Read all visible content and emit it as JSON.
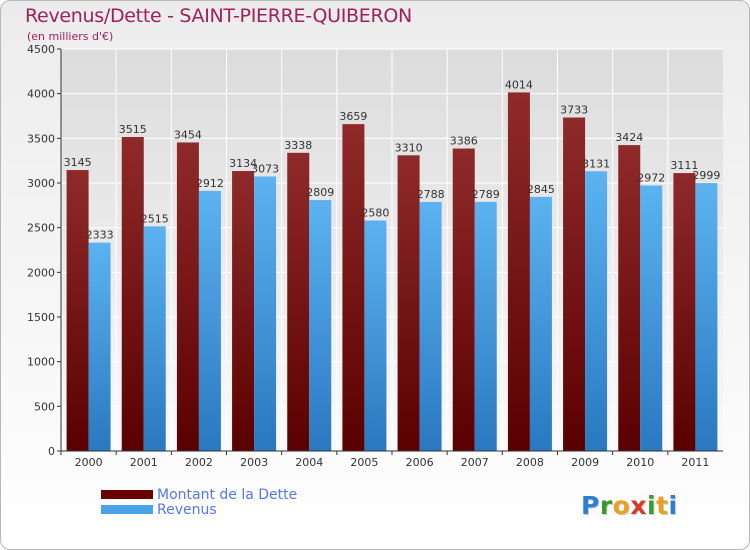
{
  "chart_data": {
    "type": "bar",
    "title": "Revenus/Dette - SAINT-PIERRE-QUIBERON",
    "subtitle": "(en milliers d'€)",
    "categories": [
      "2000",
      "2001",
      "2002",
      "2003",
      "2004",
      "2005",
      "2006",
      "2007",
      "2008",
      "2009",
      "2010",
      "2011"
    ],
    "series": [
      {
        "name": "Montant de la Dette",
        "color": "#8b1a1a",
        "values": [
          3145,
          3515,
          3454,
          3134,
          3338,
          3659,
          3310,
          3386,
          4014,
          3733,
          3424,
          3111
        ]
      },
      {
        "name": "Revenus",
        "color": "#4aa3e8",
        "values": [
          2333,
          2515,
          2912,
          3073,
          2809,
          2580,
          2788,
          2789,
          2845,
          3131,
          2972,
          2999
        ]
      }
    ],
    "yticks": [
      0,
      500,
      1000,
      1500,
      2000,
      2500,
      3000,
      3500,
      4000,
      4500
    ],
    "ylim": [
      0,
      4500
    ],
    "xlabel": "",
    "ylabel": "",
    "grid": true
  },
  "legend": {
    "items": [
      {
        "label": "Montant de la Dette",
        "color": "#6b0000"
      },
      {
        "label": "Revenus",
        "color": "#4aa3e8"
      }
    ]
  },
  "logo": {
    "letters": [
      {
        "ch": "P",
        "color": "#2a7fd4"
      },
      {
        "ch": "r",
        "color": "#3a9a2a"
      },
      {
        "ch": "o",
        "color": "#e8a020"
      },
      {
        "ch": "x",
        "color": "#d83a2a"
      },
      {
        "ch": "i",
        "color": "#3a9a2a"
      },
      {
        "ch": "t",
        "color": "#e8a020"
      },
      {
        "ch": "i",
        "color": "#2a7fd4"
      }
    ]
  }
}
